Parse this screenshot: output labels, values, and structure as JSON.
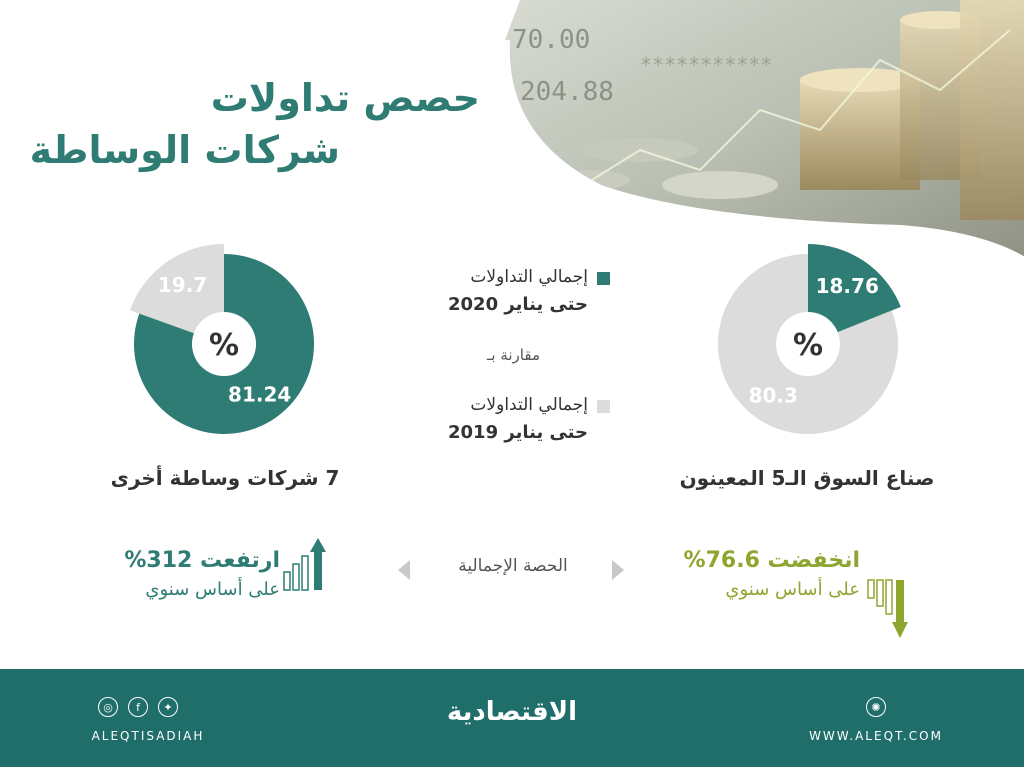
{
  "title": {
    "line1": "حصص تداولات",
    "line2": "شركات الوساطة"
  },
  "legend": {
    "current_line1": "إجمالي التداولات",
    "current_line2": "حتى يناير 2020",
    "compare": "مقارنة بـ",
    "previous_line1": "إجمالي التداولات",
    "previous_line2": "حتى يناير 2019"
  },
  "colors": {
    "teal": "#2e7c73",
    "gray": "#dcdcdc",
    "olive": "#8ea630",
    "footer": "#1f6e6a"
  },
  "chart_data": [
    {
      "type": "pie",
      "caption": "صناع السوق الـ5 المعينون",
      "center_label": "%",
      "series": [
        {
          "name": "إجمالي التداولات حتى يناير 2020",
          "value": 18.76
        },
        {
          "name": "إجمالي التداولات حتى يناير 2019",
          "value": 80.3
        }
      ]
    },
    {
      "type": "pie",
      "caption": "7 شركات وساطة أخرى",
      "center_label": "%",
      "series": [
        {
          "name": "إجمالي التداولات حتى يناير 2020",
          "value": 81.24
        },
        {
          "name": "إجمالي التداولات حتى يناير 2019",
          "value": 19.7
        }
      ]
    }
  ],
  "changes": {
    "share_label": "الحصة الإجمالية",
    "left_value": "ارتفعت 312%",
    "left_sub": "على أساس سنوي",
    "right_value": "انخفضت 76.6%",
    "right_sub": "على أساس سنوي"
  },
  "footer": {
    "brand": "الاقتصادية",
    "handle": "ALEQTISADIAH",
    "site": "WWW.ALEQT.COM"
  }
}
